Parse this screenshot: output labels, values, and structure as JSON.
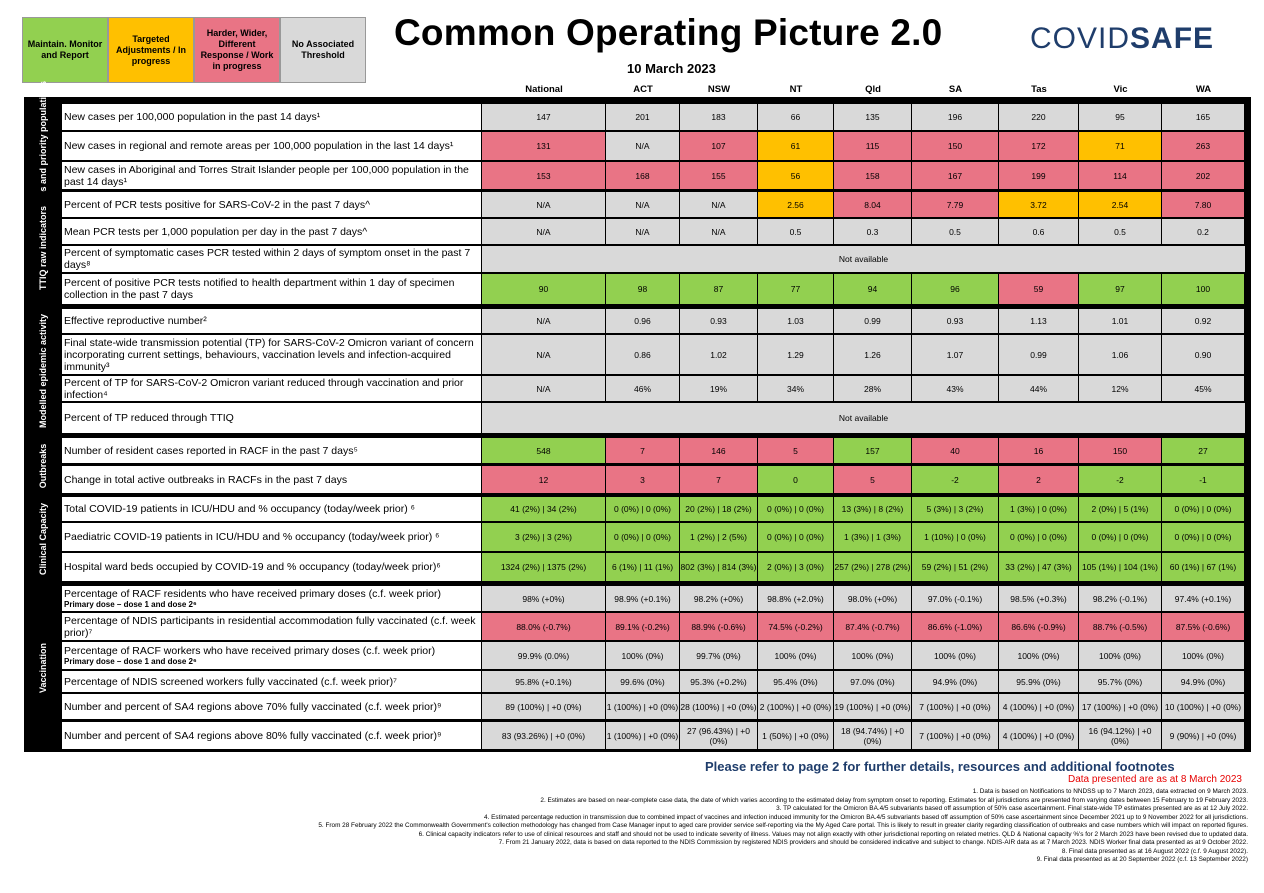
{
  "legend": [
    {
      "label": "Maintain. Monitor and Report",
      "color": "#92d050"
    },
    {
      "label": "Targeted Adjustments / In progress",
      "color": "#ffc000"
    },
    {
      "label": "Harder, Wider, Different Response / Work in progress",
      "color": "#e97485"
    },
    {
      "label": "No Associated Threshold",
      "color": "#d9d9d9"
    }
  ],
  "title": "Common Operating Picture 2.0",
  "date": "10 March 2023",
  "logo": {
    "light": "COVID",
    "bold": "SAFE"
  },
  "columns": [
    "National",
    "ACT",
    "NSW",
    "NT",
    "Qld",
    "SA",
    "Tas",
    "Vic",
    "WA"
  ],
  "sections": [
    {
      "label": "Cases and priority populations"
    },
    {
      "label": "TTIQ raw indicators"
    },
    {
      "label": "Modelled epidemic activity"
    },
    {
      "label": "Outbreaks"
    },
    {
      "label": "Clinical Capacity"
    },
    {
      "label": "Vaccination"
    }
  ],
  "rows": [
    {
      "label": "New cases per 100,000 population in the past 14 days¹",
      "sub": "",
      "values": [
        "147",
        "201",
        "183",
        "66",
        "135",
        "196",
        "220",
        "95",
        "165"
      ],
      "status": [
        "n",
        "n",
        "n",
        "n",
        "n",
        "n",
        "n",
        "n",
        "n"
      ]
    },
    {
      "label": "New cases in regional and remote areas per 100,000 population in the last 14 days¹",
      "sub": "",
      "values": [
        "131",
        "N/A",
        "107",
        "61",
        "115",
        "150",
        "172",
        "71",
        "263"
      ],
      "status": [
        "r",
        "n",
        "r",
        "o",
        "r",
        "r",
        "r",
        "o",
        "r"
      ]
    },
    {
      "label": "New cases in Aboriginal and Torres Strait Islander people per 100,000 population in the past 14 days¹",
      "sub": "",
      "values": [
        "153",
        "168",
        "155",
        "56",
        "158",
        "167",
        "199",
        "114",
        "202"
      ],
      "status": [
        "r",
        "r",
        "r",
        "o",
        "r",
        "r",
        "r",
        "r",
        "r"
      ]
    },
    {
      "label": "Percent of PCR tests positive for SARS-CoV-2 in the past 7 days^",
      "sub": "",
      "values": [
        "N/A",
        "N/A",
        "N/A",
        "2.56",
        "8.04",
        "7.79",
        "3.72",
        "2.54",
        "7.80"
      ],
      "status": [
        "n",
        "n",
        "n",
        "o",
        "r",
        "r",
        "o",
        "o",
        "r"
      ]
    },
    {
      "label": "Mean PCR tests per 1,000 population per day in the past 7 days^",
      "sub": "",
      "values": [
        "N/A",
        "N/A",
        "N/A",
        "0.5",
        "0.3",
        "0.5",
        "0.6",
        "0.5",
        "0.2"
      ],
      "status": [
        "n",
        "n",
        "n",
        "n",
        "n",
        "n",
        "n",
        "n",
        "n"
      ]
    },
    {
      "label": "Percent of symptomatic cases PCR tested within 2 days of symptom onset in the past 7 days⁸",
      "sub": "",
      "span": "Not available"
    },
    {
      "label": "Percent of positive PCR tests notified to health department within 1 day of specimen collection in the past 7 days",
      "sub": "",
      "values": [
        "90",
        "98",
        "87",
        "77",
        "94",
        "96",
        "59",
        "97",
        "100"
      ],
      "status": [
        "g",
        "g",
        "g",
        "g",
        "g",
        "g",
        "r",
        "g",
        "g"
      ]
    },
    {
      "label": "Effective reproductive number²",
      "sub": "",
      "values": [
        "N/A",
        "0.96",
        "0.93",
        "1.03",
        "0.99",
        "0.93",
        "1.13",
        "1.01",
        "0.92"
      ],
      "status": [
        "n",
        "n",
        "n",
        "n",
        "n",
        "n",
        "n",
        "n",
        "n"
      ]
    },
    {
      "label": "Final state-wide transmission potential (TP) for SARS-CoV-2 Omicron variant of concern incorporating current settings, behaviours, vaccination levels and infection-acquired immunity³",
      "sub": "",
      "values": [
        "N/A",
        "0.86",
        "1.02",
        "1.29",
        "1.26",
        "1.07",
        "0.99",
        "1.06",
        "0.90"
      ],
      "status": [
        "n",
        "n",
        "n",
        "n",
        "n",
        "n",
        "n",
        "n",
        "n"
      ]
    },
    {
      "label": "Percent of TP  for SARS-CoV-2 Omicron variant reduced through vaccination and prior infection⁴",
      "sub": "",
      "values": [
        "N/A",
        "46%",
        "19%",
        "34%",
        "28%",
        "43%",
        "44%",
        "12%",
        "45%"
      ],
      "status": [
        "n",
        "n",
        "n",
        "n",
        "n",
        "n",
        "n",
        "n",
        "n"
      ]
    },
    {
      "label": "Percent of TP reduced through TTIQ",
      "sub": "",
      "span": "Not available"
    },
    {
      "label": "Number of resident cases reported in RACF in the past 7 days⁵",
      "sub": "",
      "values": [
        "548",
        "7",
        "146",
        "5",
        "157",
        "40",
        "16",
        "150",
        "27"
      ],
      "status": [
        "g",
        "r",
        "r",
        "r",
        "g",
        "r",
        "r",
        "r",
        "g"
      ]
    },
    {
      "label": "Change in total active outbreaks in RACFs in the past 7 days",
      "sub": "",
      "values": [
        "12",
        "3",
        "7",
        "0",
        "5",
        "-2",
        "2",
        "-2",
        "-1"
      ],
      "status": [
        "r",
        "r",
        "r",
        "g",
        "r",
        "g",
        "r",
        "g",
        "g"
      ]
    },
    {
      "label": "Total COVID-19 patients in ICU/HDU and % occupancy (today/week prior) ⁶",
      "sub": "",
      "values": [
        "41 (2%) | 34 (2%)",
        "0 (0%) | 0 (0%)",
        "20 (2%) | 18 (2%)",
        "0 (0%) | 0 (0%)",
        "13 (3%) | 8 (2%)",
        "5 (3%) | 3 (2%)",
        "1 (3%) | 0 (0%)",
        "2 (0%) | 5 (1%)",
        "0 (0%) | 0 (0%)"
      ],
      "status": [
        "g",
        "g",
        "g",
        "g",
        "g",
        "g",
        "g",
        "g",
        "g"
      ]
    },
    {
      "label": "Paediatric COVID-19 patients in ICU/HDU and % occupancy (today/week prior) ⁶",
      "sub": "",
      "values": [
        "3 (2%) | 3 (2%)",
        "0 (0%) | 0 (0%)",
        "1 (2%) | 2 (5%)",
        "0 (0%) | 0 (0%)",
        "1 (3%) | 1 (3%)",
        "1 (10%) | 0 (0%)",
        "0 (0%) | 0 (0%)",
        "0 (0%) | 0 (0%)",
        "0 (0%) | 0 (0%)"
      ],
      "status": [
        "g",
        "g",
        "g",
        "g",
        "g",
        "g",
        "g",
        "g",
        "g"
      ]
    },
    {
      "label": "Hospital ward beds occupied by COVID-19 and % occupancy (today/week prior)⁶",
      "sub": "",
      "values": [
        "1324 (2%) | 1375 (2%)",
        "6 (1%) | 11 (1%)",
        "802 (3%) | 814 (3%)",
        "2 (0%) | 3 (0%)",
        "257 (2%) | 278 (2%)",
        "59 (2%) | 51 (2%)",
        "33 (2%) | 47 (3%)",
        "105 (1%) | 104 (1%)",
        "60 (1%) | 67 (1%)"
      ],
      "status": [
        "g",
        "g",
        "g",
        "g",
        "g",
        "g",
        "g",
        "g",
        "g"
      ]
    },
    {
      "label": "Percentage of RACF residents who have received primary doses (c.f. week prior)",
      "sub": "Primary dose – dose 1 and dose 2⁶",
      "values": [
        "98% (+0%)",
        "98.9% (+0.1%)",
        "98.2% (+0%)",
        "98.8% (+2.0%)",
        "98.0% (+0%)",
        "97.0% (-0.1%)",
        "98.5% (+0.3%)",
        "98.2% (-0.1%)",
        "97.4% (+0.1%)"
      ],
      "status": [
        "n",
        "n",
        "n",
        "n",
        "n",
        "n",
        "n",
        "n",
        "n"
      ]
    },
    {
      "label": "Percentage of NDIS participants in residential accommodation fully vaccinated (c.f. week prior)⁷",
      "sub": "",
      "values": [
        "88.0% (-0.7%)",
        "89.1% (-0.2%)",
        "88.9% (-0.6%)",
        "74.5% (-0.2%)",
        "87.4% (-0.7%)",
        "86.6% (-1.0%)",
        "86.6% (-0.9%)",
        "88.7% (-0.5%)",
        "87.5% (-0.6%)"
      ],
      "status": [
        "r",
        "r",
        "r",
        "r",
        "r",
        "r",
        "r",
        "r",
        "r"
      ]
    },
    {
      "label": "Percentage of RACF workers who have received primary doses (c.f. week prior)",
      "sub": "Primary dose – dose 1 and dose 2⁶",
      "values": [
        "99.9% (0.0%)",
        "100% (0%)",
        "99.7% (0%)",
        "100% (0%)",
        "100% (0%)",
        "100% (0%)",
        "100% (0%)",
        "100% (0%)",
        "100% (0%)"
      ],
      "status": [
        "n",
        "n",
        "n",
        "n",
        "n",
        "n",
        "n",
        "n",
        "n"
      ]
    },
    {
      "label": "Percentage of NDIS screened workers fully vaccinated (c.f. week prior)⁷",
      "sub": "",
      "values": [
        "95.8% (+0.1%)",
        "99.6% (0%)",
        "95.3% (+0.2%)",
        "95.4% (0%)",
        "97.0% (0%)",
        "94.9% (0%)",
        "95.9% (0%)",
        "95.7% (0%)",
        "94.9% (0%)"
      ],
      "status": [
        "n",
        "n",
        "n",
        "n",
        "n",
        "n",
        "n",
        "n",
        "n"
      ]
    },
    {
      "label": "Number and percent of SA4 regions above 70% fully vaccinated (c.f. week prior)⁹",
      "sub": "",
      "values": [
        "89 (100%) | +0 (0%)",
        "1 (100%) | +0 (0%)",
        "28 (100%) | +0 (0%)",
        "2 (100%) | +0 (0%)",
        "19 (100%) | +0 (0%)",
        "7 (100%) | +0 (0%)",
        "4 (100%) | +0 (0%)",
        "17 (100%) | +0 (0%)",
        "10 (100%) | +0 (0%)"
      ],
      "status": [
        "n",
        "n",
        "n",
        "n",
        "n",
        "n",
        "n",
        "n",
        "n"
      ]
    },
    {
      "label": "Number and percent of SA4 regions above 80% fully vaccinated (c.f. week prior)⁹",
      "sub": "",
      "values": [
        "83 (93.26%) | +0 (0%)",
        "1 (100%) | +0 (0%)",
        "27 (96.43%) | +0 (0%)",
        "1 (50%) | +0 (0%)",
        "18 (94.74%) | +0 (0%)",
        "7 (100%) | +0 (0%)",
        "4 (100%) | +0 (0%)",
        "16 (94.12%) | +0 (0%)",
        "9 (90%) | +0 (0%)"
      ],
      "status": [
        "n",
        "n",
        "n",
        "n",
        "n",
        "n",
        "n",
        "n",
        "n"
      ]
    }
  ],
  "refer": "Please refer to page 2 for further details, resources and additional footnotes",
  "as_at": "Data presented are as at 8 March 2023",
  "footnotes": [
    "1.    Data is based on Notifications to NNDSS up to 7 March 2023, data extracted on 9 March 2023.",
    "2. Estimates are based on near-complete case data, the date of which varies according to the estimated delay from symptom onset to reporting. Estimates for all jurisdictions are presented from varying dates between 15 February to 19 February 2023.",
    "3. TP calculated for the Omicron BA.4/5 subvariants based off assumption of 50% case ascertainment. Final state-wide TP estimates presented are as at 12 July 2022.",
    "4. Estimated percentage reduction in transmission due to combined impact of vaccines and infection induced immunity for the Omicron BA.4/5 subvariants based off assumption of 50% case ascertainment since December 2021 up to 9 November 2022 for all jurisdictions.",
    "5. From 28 February 2022 the Commonwealth Government's collection methodology has changed from Case Manager input to aged care provider service self-reporting via the My Aged Care portal. This is likely to result in greater clarity regarding classification of outbreaks and case numbers which will impact on reported figures.",
    "6. Clinical capacity indicators refer to use of clinical resources and staff and should not be used to indicate severity of illness. Values may not align exactly with other jurisdictional reporting on related metrics. QLD & National capacity %'s for 2 March 2023 have been revised due to updated data.",
    "7. From 21 January 2022, data is based on data reported to the NDIS Commission by registered NDIS providers and should be considered indicative and subject to change. NDIS-AIR data as at 7 March 2023. NDIS Worker final data presented as at 9 October 2022.",
    "8. Final data presented as at 16 August 2022 (c.f. 9 August 2022).",
    "9. Final data presented as at 20 September 2022 (c.f. 13 September 2022)"
  ]
}
